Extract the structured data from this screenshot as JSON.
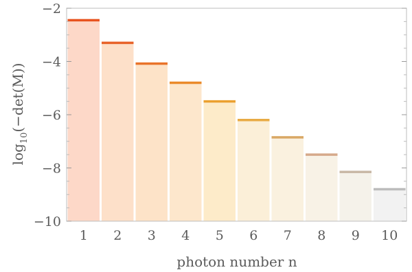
{
  "chart_data": {
    "type": "bar",
    "title": "",
    "xlabel": "photon number n",
    "ylabel_base": "log",
    "ylabel_sub": "10",
    "ylabel_rest": "(−det(M))",
    "categories": [
      "1",
      "2",
      "3",
      "4",
      "5",
      "6",
      "7",
      "8",
      "9",
      "10"
    ],
    "values": [
      -2.45,
      -3.3,
      -4.08,
      -4.8,
      -5.5,
      -6.2,
      -6.85,
      -7.5,
      -8.15,
      -8.8
    ],
    "ylim": [
      -10,
      -2
    ],
    "yticks": [
      -10,
      -8,
      -6,
      -4,
      -2
    ],
    "ytick_labels": [
      "−10",
      "−8",
      "−6",
      "−4",
      "−2"
    ],
    "grid": false,
    "bar_fill_colors": [
      "#fdd8c8",
      "#fde0c9",
      "#fde3c8",
      "#fde7cc",
      "#fdebc9",
      "#fbefd8",
      "#faf1df",
      "#f8f2e6",
      "#f5f2ea",
      "#f2f2f2"
    ],
    "bar_cap_colors": [
      "#e8531f",
      "#e8632a",
      "#e9732a",
      "#ea8a2a",
      "#eba030",
      "#e8ab45",
      "#d9a865",
      "#d6a98a",
      "#c8b8a6",
      "#bcbcbc"
    ]
  }
}
